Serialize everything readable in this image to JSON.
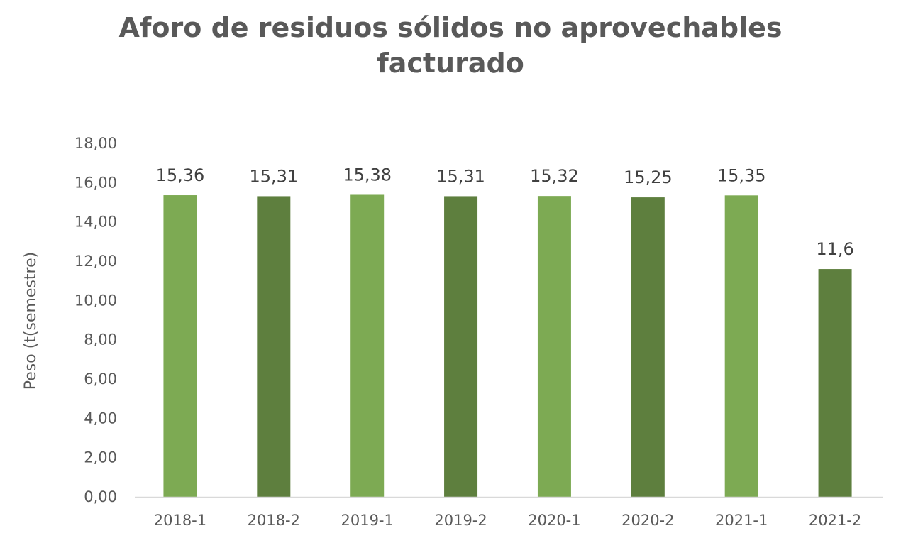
{
  "chart_data": {
    "type": "bar",
    "title_lines": [
      "Aforo de residuos sólidos no aprovechables",
      "facturado"
    ],
    "xlabel": "",
    "ylabel": "Peso (t(semestre)",
    "ylim": [
      0,
      18
    ],
    "yticks": [
      "0,00",
      "2,00",
      "4,00",
      "6,00",
      "8,00",
      "10,00",
      "12,00",
      "14,00",
      "16,00",
      "18,00"
    ],
    "categories": [
      "2018-1",
      "2018-2",
      "2019-1",
      "2019-2",
      "2020-1",
      "2020-2",
      "2021-1",
      "2021-2"
    ],
    "values": [
      15.36,
      15.31,
      15.38,
      15.31,
      15.32,
      15.25,
      15.35,
      11.6
    ],
    "data_labels": [
      "15,36",
      "15,31",
      "15,38",
      "15,31",
      "15,32",
      "15,25",
      "15,35",
      "11,6"
    ],
    "colors": [
      "#7daa53",
      "#5e7f3e",
      "#7daa53",
      "#5e7f3e",
      "#7daa53",
      "#5e7f3e",
      "#7daa53",
      "#5e7f3e"
    ],
    "axis_color": "#d9d9d9",
    "grid": false,
    "legend": "none"
  }
}
